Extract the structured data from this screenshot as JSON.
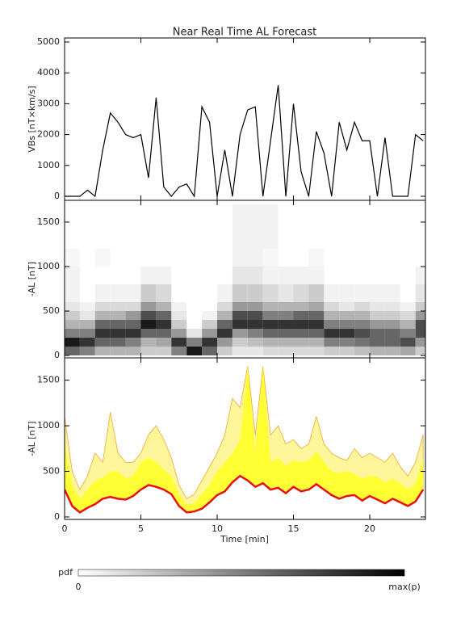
{
  "chart_data": [
    {
      "type": "line",
      "title": "Near Real Time AL Forecast",
      "y_label": "VBs [nT×km/s]",
      "color": "#000000",
      "x": [
        0,
        0.5,
        1,
        1.5,
        2,
        2.5,
        3,
        3.5,
        4,
        4.5,
        5,
        5.5,
        6,
        6.5,
        7,
        7.5,
        8,
        8.5,
        9,
        9.5,
        10,
        10.5,
        11,
        11.5,
        12,
        12.5,
        13,
        13.5,
        14,
        14.5,
        15,
        15.5,
        16,
        16.5,
        17,
        17.5,
        18,
        18.5,
        19,
        19.5,
        20,
        20.5,
        21,
        21.5,
        22,
        22.5,
        23,
        23.5
      ],
      "values": [
        0,
        0,
        0,
        200,
        0,
        1500,
        2700,
        2400,
        2000,
        1900,
        2000,
        600,
        3200,
        300,
        0,
        300,
        400,
        0,
        2900,
        2400,
        0,
        1500,
        0,
        2000,
        2800,
        2900,
        0,
        1800,
        3600,
        0,
        3000,
        800,
        0,
        2100,
        1400,
        0,
        2400,
        1500,
        2400,
        1800,
        1800,
        0,
        1900,
        0,
        0,
        0,
        2000,
        1800
      ],
      "xlim": [
        0,
        23.65
      ],
      "ylim": [
        -130,
        5130
      ],
      "yticks": [
        0,
        1000,
        2000,
        3000,
        4000,
        5000
      ]
    },
    {
      "type": "heatmap",
      "y_label": "-AL [nT]",
      "colorbar_label": "pdf",
      "colorbar_ticks": [
        "0",
        "max(p)"
      ],
      "xbins": [
        0,
        1,
        2,
        3,
        4,
        5,
        6,
        7,
        8,
        9,
        10,
        11,
        12,
        13,
        14,
        15,
        16,
        17,
        18,
        19,
        20,
        21,
        22,
        23,
        24
      ],
      "ybins": [
        0,
        100,
        200,
        300,
        400,
        500,
        600,
        800,
        1000,
        1200,
        1700
      ],
      "z": [
        [
          0.6,
          0.5,
          0.3,
          0.3,
          0.3,
          0.2,
          0.2,
          0.5,
          0.9,
          0.6,
          0.2,
          0.1,
          0.1,
          0.15,
          0.15,
          0.15,
          0.15,
          0.2,
          0.2,
          0.25,
          0.3,
          0.3,
          0.35,
          0.2
        ],
        [
          0.9,
          0.8,
          0.6,
          0.6,
          0.5,
          0.3,
          0.35,
          0.8,
          0.5,
          0.8,
          0.4,
          0.2,
          0.25,
          0.3,
          0.3,
          0.3,
          0.3,
          0.5,
          0.5,
          0.55,
          0.6,
          0.6,
          0.7,
          0.4
        ],
        [
          0.5,
          0.5,
          0.8,
          0.8,
          0.8,
          0.6,
          0.6,
          0.4,
          0.1,
          0.4,
          0.8,
          0.4,
          0.5,
          0.6,
          0.6,
          0.6,
          0.6,
          0.8,
          0.8,
          0.7,
          0.6,
          0.6,
          0.5,
          0.7
        ],
        [
          0.3,
          0.3,
          0.6,
          0.6,
          0.6,
          0.9,
          0.8,
          0.2,
          0,
          0.2,
          0.6,
          0.8,
          0.8,
          0.8,
          0.8,
          0.8,
          0.8,
          0.5,
          0.5,
          0.5,
          0.4,
          0.4,
          0.3,
          0.7
        ],
        [
          0.2,
          0.1,
          0.3,
          0.3,
          0.4,
          0.7,
          0.6,
          0.1,
          0,
          0.05,
          0.3,
          0.7,
          0.7,
          0.5,
          0.5,
          0.6,
          0.6,
          0.3,
          0.3,
          0.3,
          0.2,
          0.2,
          0.15,
          0.4
        ],
        [
          0.1,
          0.05,
          0.15,
          0.15,
          0.15,
          0.4,
          0.3,
          0.05,
          0,
          0,
          0.15,
          0.4,
          0.4,
          0.3,
          0.3,
          0.3,
          0.35,
          0.15,
          0.1,
          0.15,
          0.1,
          0.1,
          0.05,
          0.2
        ],
        [
          0.05,
          0,
          0.05,
          0.05,
          0.05,
          0.2,
          0.15,
          0,
          0,
          0,
          0.05,
          0.2,
          0.2,
          0.15,
          0.1,
          0.15,
          0.2,
          0.05,
          0.05,
          0.05,
          0.05,
          0.05,
          0,
          0.1
        ],
        [
          0.05,
          0,
          0,
          0,
          0,
          0.05,
          0.05,
          0,
          0,
          0,
          0,
          0.1,
          0.1,
          0.05,
          0.05,
          0.05,
          0.05,
          0,
          0,
          0,
          0,
          0,
          0,
          0.05
        ],
        [
          0.03,
          0,
          0.03,
          0,
          0,
          0,
          0,
          0,
          0,
          0,
          0,
          0.05,
          0.05,
          0.03,
          0,
          0,
          0.03,
          0,
          0,
          0,
          0,
          0,
          0,
          0
        ],
        [
          0,
          0,
          0,
          0,
          0,
          0,
          0,
          0,
          0,
          0,
          0,
          0.05,
          0.05,
          0.05,
          0,
          0,
          0,
          0,
          0,
          0,
          0,
          0,
          0,
          0
        ]
      ],
      "xlim": [
        0,
        23.65
      ],
      "ylim": [
        -27,
        1745
      ],
      "yticks": [
        0,
        500,
        1000,
        1500
      ]
    },
    {
      "type": "band",
      "y_label": "-AL [nT]",
      "x_label": "Time [min]",
      "x": [
        0,
        0.5,
        1,
        1.5,
        2,
        2.5,
        3,
        3.5,
        4,
        4.5,
        5,
        5.5,
        6,
        6.5,
        7,
        7.5,
        8,
        8.5,
        9,
        9.5,
        10,
        10.5,
        11,
        11.5,
        12,
        12.5,
        13,
        13.5,
        14,
        14.5,
        15,
        15.5,
        16,
        16.5,
        17,
        17.5,
        18,
        18.5,
        19,
        19.5,
        20,
        20.5,
        21,
        21.5,
        22,
        22.5,
        23,
        23.5
      ],
      "series": [
        {
          "color": "#fff59a",
          "values": [
            1100,
            500,
            300,
            450,
            700,
            600,
            1150,
            700,
            600,
            600,
            700,
            900,
            1000,
            850,
            650,
            350,
            200,
            250,
            400,
            550,
            700,
            900,
            1300,
            1200,
            1650,
            900,
            1650,
            900,
            1000,
            800,
            850,
            750,
            800,
            1100,
            800,
            700,
            650,
            620,
            750,
            650,
            700,
            650,
            600,
            700,
            550,
            450,
            600,
            900
          ]
        },
        {
          "color": "#ffff33",
          "values": [
            800,
            350,
            200,
            300,
            400,
            430,
            500,
            500,
            420,
            450,
            600,
            650,
            600,
            520,
            450,
            250,
            130,
            150,
            250,
            350,
            500,
            600,
            700,
            850,
            1650,
            720,
            1650,
            600,
            650,
            560,
            620,
            600,
            620,
            720,
            600,
            500,
            480,
            500,
            470,
            420,
            450,
            440,
            380,
            420,
            370,
            300,
            370,
            650
          ]
        },
        {
          "color": "#e81010",
          "values": [
            300,
            120,
            50,
            100,
            140,
            200,
            220,
            200,
            190,
            230,
            300,
            350,
            330,
            300,
            250,
            120,
            50,
            60,
            90,
            160,
            240,
            280,
            380,
            450,
            400,
            330,
            370,
            300,
            320,
            260,
            330,
            280,
            300,
            360,
            300,
            240,
            200,
            230,
            240,
            180,
            230,
            190,
            150,
            200,
            160,
            120,
            170,
            300
          ]
        }
      ],
      "xlim": [
        0,
        23.65
      ],
      "ylim": [
        -27,
        1745
      ],
      "xticks": [
        0,
        5,
        10,
        15,
        20
      ],
      "yticks": [
        0,
        500,
        1000,
        1500
      ]
    }
  ]
}
